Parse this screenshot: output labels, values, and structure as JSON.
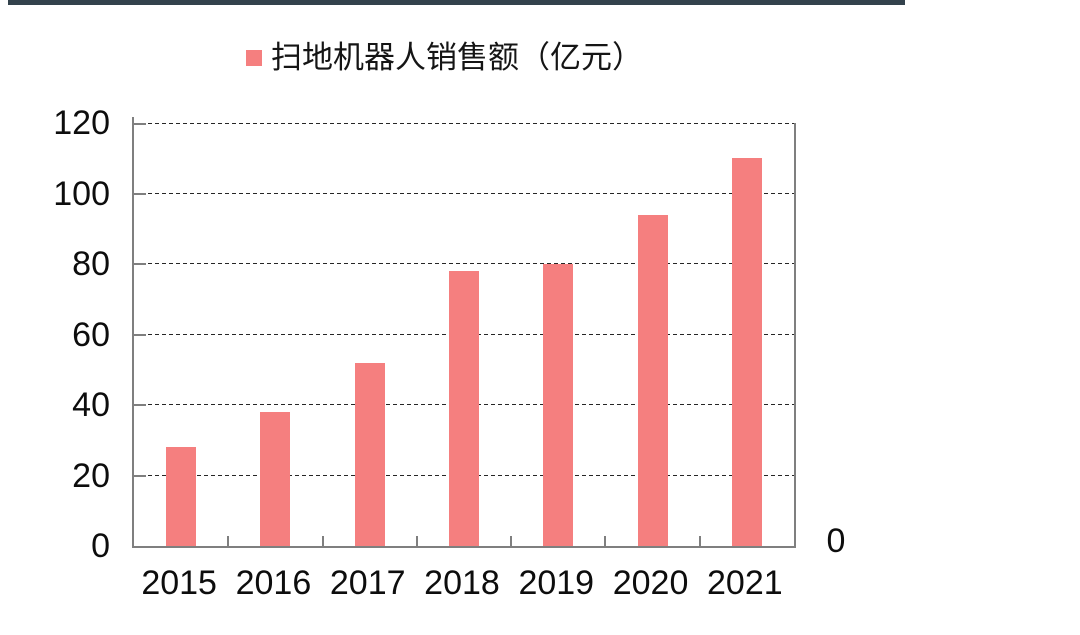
{
  "page": {
    "top_rule_color": "#33424C",
    "background_color": "#ffffff"
  },
  "legend": {
    "label": "扫地机器人销售额（亿元）"
  },
  "chart_data": {
    "type": "bar",
    "title": "",
    "categories": [
      "2015",
      "2016",
      "2017",
      "2018",
      "2019",
      "2020",
      "2021"
    ],
    "series": [
      {
        "name": "扫地机器人销售额（亿元）",
        "values": [
          28,
          38,
          52,
          78,
          80,
          94,
          110
        ]
      }
    ],
    "xlabel": "",
    "ylabel": "",
    "ylim": [
      0,
      120
    ],
    "yticks": [
      0,
      20,
      40,
      60,
      80,
      100,
      120
    ],
    "secondary_axis_label": "0",
    "bar_color": "#F57F7F",
    "axis_color": "#7f7f7f",
    "gridline_color": "#262626",
    "grid": true,
    "gridline_style": "dashed",
    "legend_position": "top"
  }
}
